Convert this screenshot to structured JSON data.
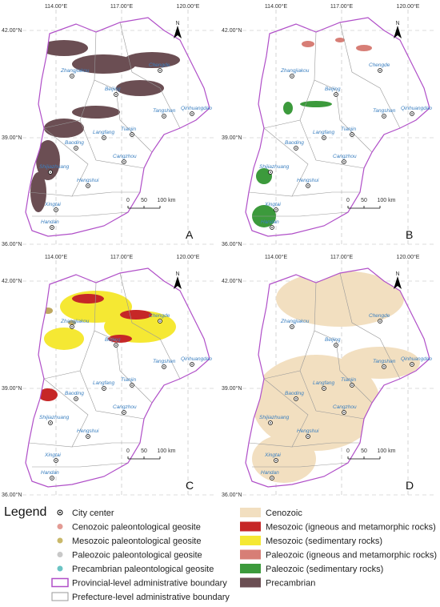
{
  "map": {
    "lon_labels": [
      "114.00°E",
      "117.00°E",
      "120.00°E"
    ],
    "lat_labels": [
      "42.00°N",
      "39.00°N",
      "36.00°N"
    ],
    "north": "N",
    "scale_labels": [
      "0",
      "50",
      "100 km"
    ],
    "cities": [
      "Zhangjiakou",
      "Chengde",
      "Beijing",
      "Tangshan",
      "Qinhuangdao",
      "Tianjin",
      "Langfang",
      "Baoding",
      "Cangzhou",
      "Shijiazhuang",
      "Hengshui",
      "Xingtai",
      "Handan"
    ]
  },
  "panels": [
    {
      "label": "A"
    },
    {
      "label": "B"
    },
    {
      "label": "C"
    },
    {
      "label": "D"
    }
  ],
  "legend": {
    "title": "Legend",
    "left": [
      "City center",
      "Cenozoic paleontological geosite",
      "Mesozoic paleontological geosite",
      "Paleozoic paleontological geosite",
      "Precambrian paleontological geosite",
      "Provincial-level administrative boundary",
      "Prefecture-level administrative boundary"
    ],
    "right": [
      "Cenozoic",
      "Mesozoic (igneous and metamorphic rocks)",
      "Mesozoic (sedimentary rocks)",
      "Paleozoic (igneous and metamorphic rocks)",
      "Paleozoic (sedimentary rocks)",
      "Precambrian"
    ]
  }
}
